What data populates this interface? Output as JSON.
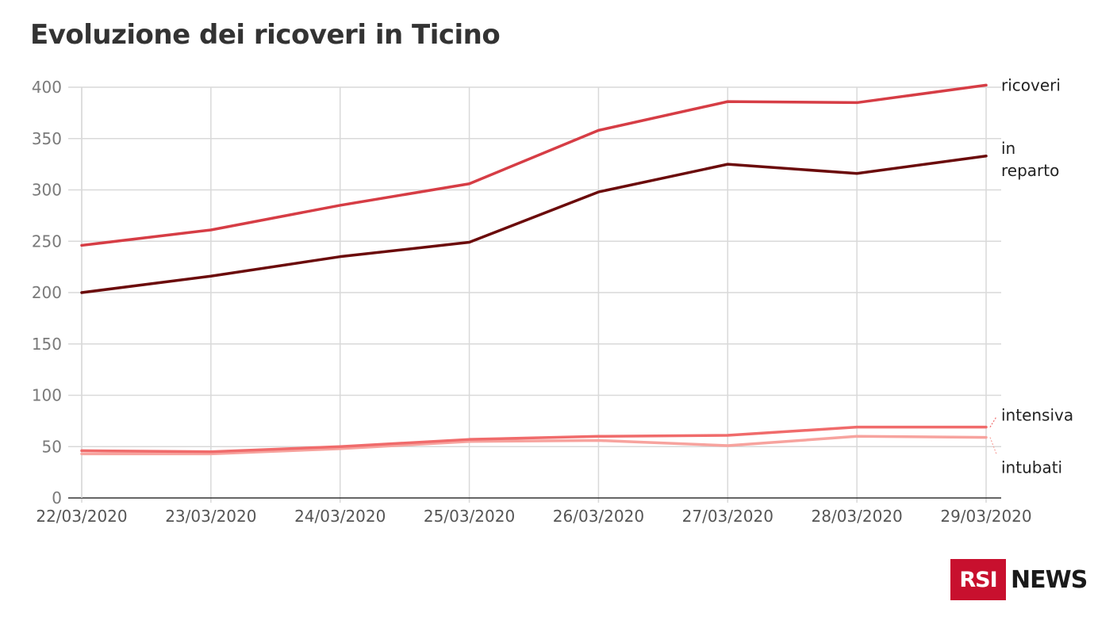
{
  "title": "Evoluzione dei ricoveri in Ticino",
  "logo": {
    "box_text": "RSI",
    "text": "NEWS",
    "box_color": "#c8102e"
  },
  "chart_data": {
    "type": "line",
    "title": "Evoluzione dei ricoveri in Ticino",
    "xlabel": "",
    "ylabel": "",
    "ylim": [
      0,
      400
    ],
    "yticks": [
      0,
      50,
      100,
      150,
      200,
      250,
      300,
      350,
      400
    ],
    "grid": true,
    "categories": [
      "22/03/2020",
      "23/03/2020",
      "24/03/2020",
      "25/03/2020",
      "26/03/2020",
      "27/03/2020",
      "28/03/2020",
      "29/03/2020"
    ],
    "series": [
      {
        "name": "ricoveri",
        "label_lines": [
          "ricoveri"
        ],
        "color": "#d63d45",
        "values": [
          246,
          261,
          285,
          306,
          358,
          386,
          385,
          402
        ]
      },
      {
        "name": "in reparto",
        "label_lines": [
          "in",
          "reparto"
        ],
        "color": "#6b0a0a",
        "values": [
          200,
          216,
          235,
          249,
          298,
          325,
          316,
          333
        ]
      },
      {
        "name": "intensiva",
        "label_lines": [
          "intensiva"
        ],
        "color": "#f06b6b",
        "values": [
          46,
          45,
          50,
          57,
          60,
          61,
          69,
          69
        ]
      },
      {
        "name": "intubati",
        "label_lines": [
          "intubati"
        ],
        "color": "#f7a39e",
        "values": [
          43,
          43,
          48,
          55,
          56,
          51,
          60,
          59
        ]
      }
    ]
  }
}
